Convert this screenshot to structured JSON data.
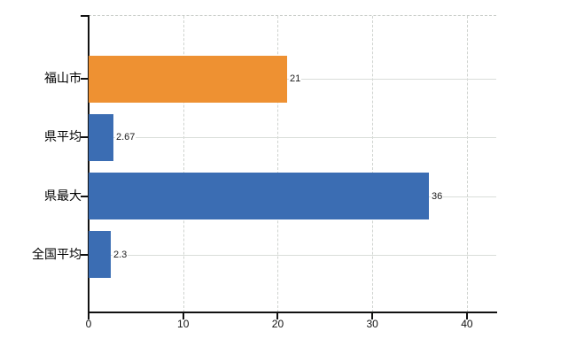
{
  "chart_data": {
    "type": "bar",
    "orientation": "horizontal",
    "title": "",
    "xlabel": "",
    "ylabel": "",
    "categories": [
      "福山市",
      "県平均",
      "県最大",
      "全国平均"
    ],
    "values": [
      21,
      2.67,
      36,
      2.3
    ],
    "value_labels": [
      "21",
      "2.67",
      "36",
      "2.3"
    ],
    "bar_colors": [
      "#ee9132",
      "#3b6db3",
      "#3b6db3",
      "#3b6db3"
    ],
    "x_ticks": [
      "0",
      "10",
      "20",
      "30",
      "40"
    ],
    "x_tick_values": [
      0,
      10,
      20,
      30,
      40
    ],
    "xlim": [
      0,
      43.1
    ],
    "grid": true,
    "legend": false,
    "colors": {
      "bar_orange": "#ee9132",
      "bar_blue": "#3b6db3",
      "axis": "#111111",
      "gridline": "#d9ddd9",
      "value_label_text": "#1a1a1a",
      "category_label_text": "#000000",
      "background": "#ffffff"
    }
  }
}
